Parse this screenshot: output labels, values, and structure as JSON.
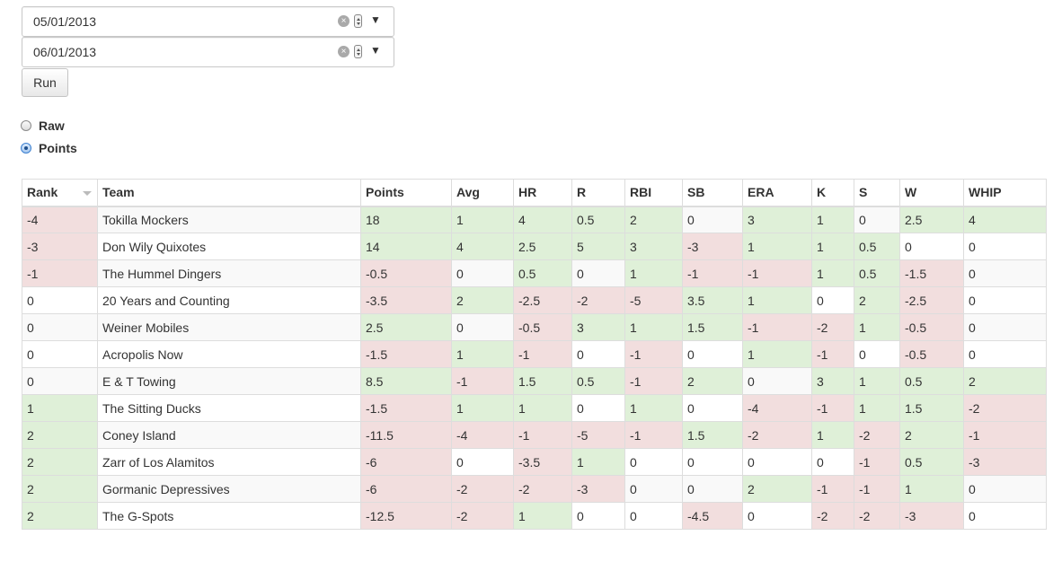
{
  "filters": {
    "start_date": "05/01/2013",
    "end_date": "06/01/2013",
    "clear_glyph": "×",
    "dropdown_glyph": "▼",
    "run_label": "Run"
  },
  "view_mode": {
    "options": [
      {
        "label": "Raw",
        "checked": false
      },
      {
        "label": "Points",
        "checked": true
      }
    ]
  },
  "table": {
    "columns": [
      "Rank",
      "Team",
      "Points",
      "Avg",
      "HR",
      "R",
      "RBI",
      "SB",
      "ERA",
      "K",
      "S",
      "W",
      "WHIP"
    ],
    "sorted_column": "Rank",
    "rows": [
      [
        "-4",
        "Tokilla Mockers",
        "18",
        "1",
        "4",
        "0.5",
        "2",
        "0",
        "3",
        "1",
        "0",
        "2.5",
        "4"
      ],
      [
        "-3",
        "Don Wily Quixotes",
        "14",
        "4",
        "2.5",
        "5",
        "3",
        "-3",
        "1",
        "1",
        "0.5",
        "0",
        "0"
      ],
      [
        "-1",
        "The Hummel Dingers",
        "-0.5",
        "0",
        "0.5",
        "0",
        "1",
        "-1",
        "-1",
        "1",
        "0.5",
        "-1.5",
        "0"
      ],
      [
        "0",
        "20 Years and Counting",
        "-3.5",
        "2",
        "-2.5",
        "-2",
        "-5",
        "3.5",
        "1",
        "0",
        "2",
        "-2.5",
        "0"
      ],
      [
        "0",
        "Weiner Mobiles",
        "2.5",
        "0",
        "-0.5",
        "3",
        "1",
        "1.5",
        "-1",
        "-2",
        "1",
        "-0.5",
        "0"
      ],
      [
        "0",
        "Acropolis Now",
        "-1.5",
        "1",
        "-1",
        "0",
        "-1",
        "0",
        "1",
        "-1",
        "0",
        "-0.5",
        "0"
      ],
      [
        "0",
        "E & T Towing",
        "8.5",
        "-1",
        "1.5",
        "0.5",
        "-1",
        "2",
        "0",
        "3",
        "1",
        "0.5",
        "2"
      ],
      [
        "1",
        "The Sitting Ducks",
        "-1.5",
        "1",
        "1",
        "0",
        "1",
        "0",
        "-4",
        "-1",
        "1",
        "1.5",
        "-2"
      ],
      [
        "2",
        "Coney Island",
        "-11.5",
        "-4",
        "-1",
        "-5",
        "-1",
        "1.5",
        "-2",
        "1",
        "-2",
        "2",
        "-1"
      ],
      [
        "2",
        "Zarr of Los Alamitos",
        "-6",
        "0",
        "-3.5",
        "1",
        "0",
        "0",
        "0",
        "0",
        "-1",
        "0.5",
        "-3"
      ],
      [
        "2",
        "Gormanic Depressives",
        "-6",
        "-2",
        "-2",
        "-3",
        "0",
        "0",
        "2",
        "-1",
        "-1",
        "1",
        "0"
      ],
      [
        "2",
        "The G-Spots",
        "-12.5",
        "-2",
        "1",
        "0",
        "0",
        "-4.5",
        "0",
        "-2",
        "-2",
        "-3",
        "0"
      ]
    ]
  },
  "colors": {
    "positive_bg": "#dff0d8",
    "negative_bg": "#f2dede",
    "stripe_bg": "#f9f9f9",
    "border": "#dddddd"
  }
}
